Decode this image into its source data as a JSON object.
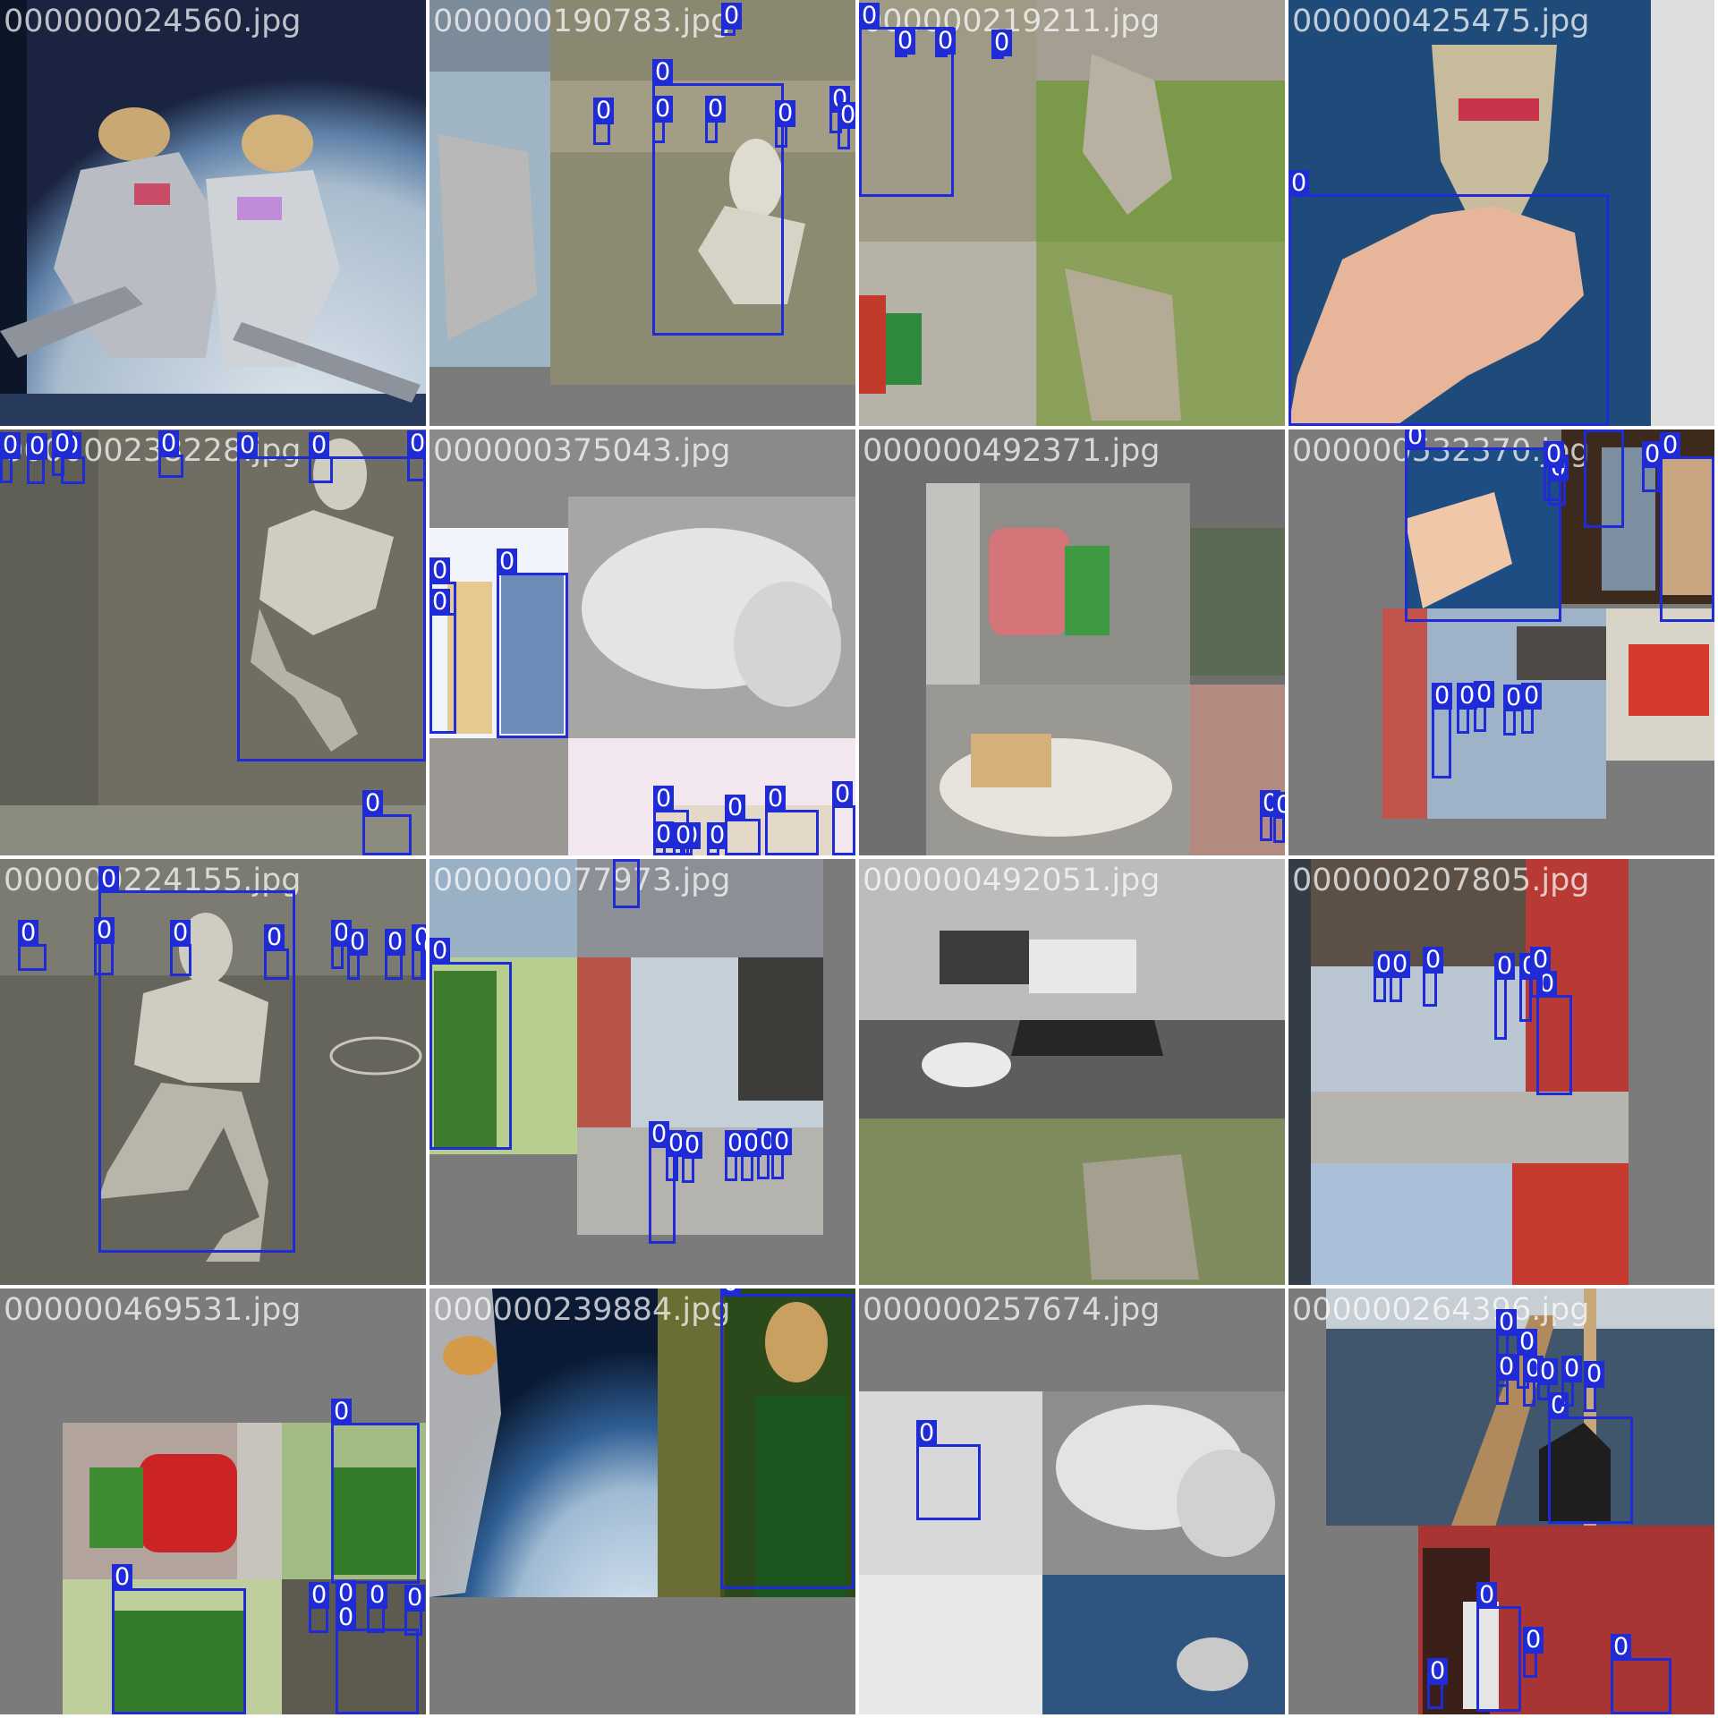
{
  "grid": {
    "label_color": "#1f2bd6",
    "tiles": [
      {
        "filename": "000000024560.jpg",
        "labels": []
      },
      {
        "filename": "000000190783.jpg",
        "labels": [
          "0",
          "0",
          "0",
          "0",
          "0",
          "0",
          "0",
          "0"
        ]
      },
      {
        "filename": "000000219211.jpg",
        "labels": [
          "0",
          "0",
          "0",
          "0"
        ]
      },
      {
        "filename": "000000425475.jpg",
        "labels": [
          "0"
        ]
      },
      {
        "filename": "000000238228.jpg",
        "labels": [
          "0",
          "0",
          "0",
          "0",
          "0",
          "0",
          "0",
          "0",
          "0"
        ]
      },
      {
        "filename": "000000375043.jpg",
        "labels": [
          "0",
          "0",
          "0",
          "0",
          "0",
          "0",
          "0",
          "0",
          "0",
          "0",
          "0"
        ]
      },
      {
        "filename": "000000492371.jpg",
        "labels": [
          "0",
          "0"
        ]
      },
      {
        "filename": "000000532370.jpg",
        "labels": [
          "0",
          "0",
          "0",
          "0",
          "0",
          "0",
          "0",
          "0",
          "0",
          "0",
          "0"
        ]
      },
      {
        "filename": "000000224155.jpg",
        "labels": [
          "0",
          "0",
          "0",
          "0",
          "0",
          "0",
          "0",
          "0",
          "0",
          "0"
        ]
      },
      {
        "filename": "000000077973.jpg",
        "labels": [
          "0",
          "0",
          "0",
          "0",
          "0",
          "0",
          "0",
          "0",
          "0"
        ]
      },
      {
        "filename": "000000492051.jpg",
        "labels": []
      },
      {
        "filename": "000000207805.jpg",
        "labels": [
          "0",
          "0",
          "0",
          "0",
          "0",
          "0",
          "0"
        ]
      },
      {
        "filename": "000000469531.jpg",
        "labels": [
          "0",
          "0",
          "0",
          "0",
          "0",
          "0",
          "0"
        ]
      },
      {
        "filename": "000000239884.jpg",
        "labels": [
          "0"
        ]
      },
      {
        "filename": "000000257674.jpg",
        "labels": [
          "0"
        ]
      },
      {
        "filename": "000000264396.jpg",
        "labels": [
          "0",
          "0",
          "0",
          "0",
          "0",
          "0",
          "0",
          "0",
          "0",
          "0",
          "0",
          "0"
        ]
      }
    ]
  }
}
